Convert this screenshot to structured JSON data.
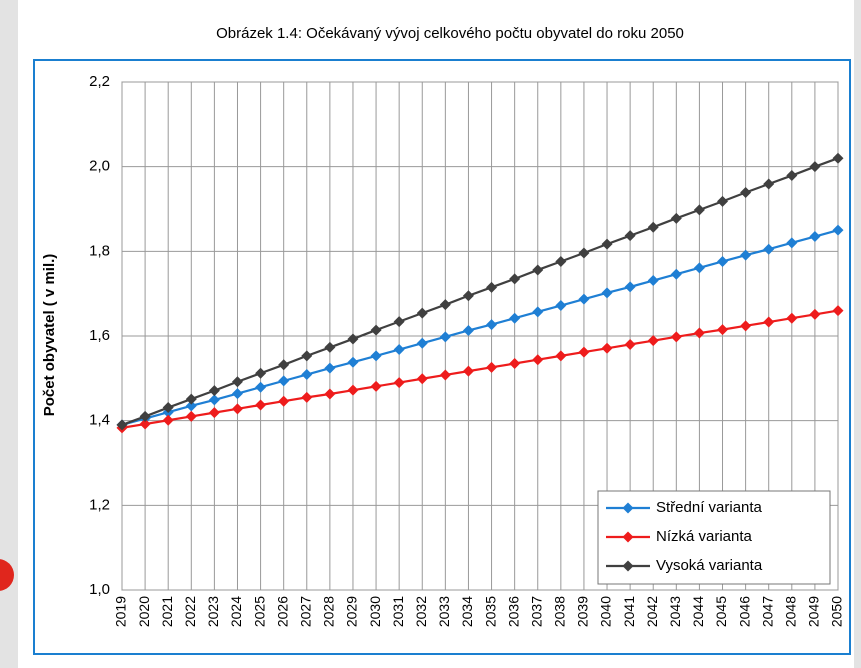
{
  "chart_data": {
    "type": "line",
    "title": "Obrázek 1.4: Očekávaný vývoj celkového počtu obyvatel do roku 2050",
    "ylabel": "Počet obyvatel ( v mil.)",
    "categories": [
      "2019",
      "2020",
      "2021",
      "2022",
      "2023",
      "2024",
      "2025",
      "2026",
      "2027",
      "2028",
      "2029",
      "2030",
      "2031",
      "2032",
      "2033",
      "2034",
      "2035",
      "2036",
      "2037",
      "2038",
      "2039",
      "2040",
      "2041",
      "2042",
      "2043",
      "2044",
      "2045",
      "2046",
      "2047",
      "2048",
      "2049",
      "2050"
    ],
    "series": [
      {
        "name": "Střední varianta",
        "color": "#1f7fd4",
        "values": [
          1.39,
          1.405,
          1.42,
          1.435,
          1.449,
          1.464,
          1.479,
          1.494,
          1.509,
          1.524,
          1.538,
          1.553,
          1.568,
          1.583,
          1.598,
          1.613,
          1.627,
          1.642,
          1.657,
          1.672,
          1.687,
          1.702,
          1.716,
          1.731,
          1.746,
          1.761,
          1.776,
          1.791,
          1.805,
          1.82,
          1.835,
          1.85
        ]
      },
      {
        "name": "Nízká varianta",
        "color": "#ee1c1c",
        "values": [
          1.383,
          1.392,
          1.401,
          1.41,
          1.419,
          1.428,
          1.437,
          1.446,
          1.455,
          1.463,
          1.472,
          1.481,
          1.49,
          1.499,
          1.508,
          1.517,
          1.526,
          1.535,
          1.544,
          1.553,
          1.562,
          1.571,
          1.58,
          1.589,
          1.598,
          1.607,
          1.615,
          1.624,
          1.633,
          1.642,
          1.651,
          1.66
        ]
      },
      {
        "name": "Vysoká varianta",
        "color": "#404040",
        "values": [
          1.39,
          1.41,
          1.431,
          1.451,
          1.471,
          1.492,
          1.512,
          1.532,
          1.553,
          1.573,
          1.593,
          1.614,
          1.634,
          1.654,
          1.674,
          1.695,
          1.715,
          1.735,
          1.756,
          1.776,
          1.796,
          1.817,
          1.837,
          1.857,
          1.878,
          1.898,
          1.918,
          1.939,
          1.959,
          1.979,
          2.0,
          2.02
        ]
      }
    ],
    "ylim": [
      1.0,
      2.2
    ],
    "yticks": [
      {
        "value": 1.0,
        "label": "1,0"
      },
      {
        "value": 1.2,
        "label": "1,2"
      },
      {
        "value": 1.4,
        "label": "1,4"
      },
      {
        "value": 1.6,
        "label": "1,6"
      },
      {
        "value": 1.8,
        "label": "1,8"
      },
      {
        "value": 2.0,
        "label": "2,0"
      },
      {
        "value": 2.2,
        "label": "2,2"
      }
    ],
    "grid": true,
    "legend": "lower right"
  }
}
